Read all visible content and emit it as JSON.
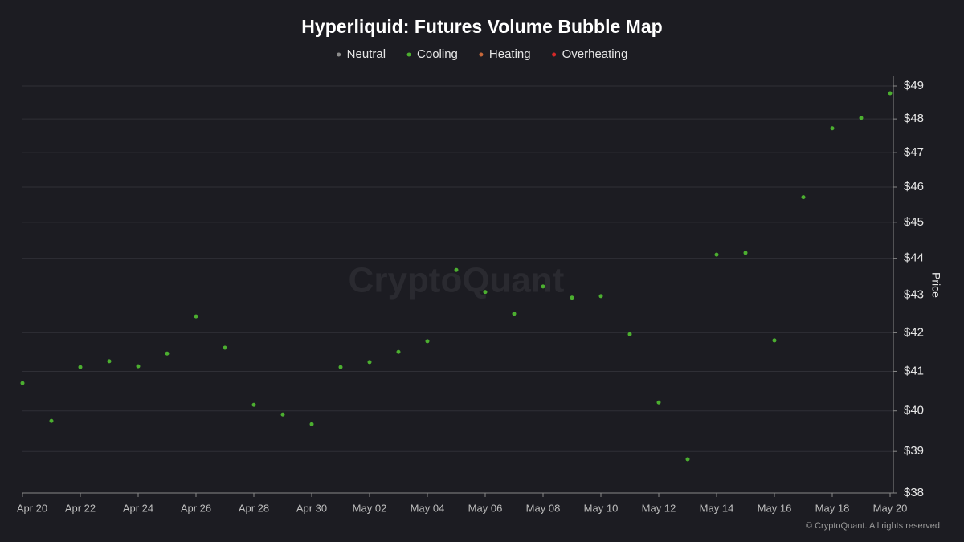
{
  "chart_data": {
    "type": "scatter",
    "title": "Hyperliquid: Futures Volume Bubble Map",
    "y_label": "Price",
    "watermark": "CryptoQuant",
    "copyright": "© CryptoQuant. All rights reserved",
    "yscale": "log",
    "grid": true,
    "legend": "top",
    "categories": [
      "Apr 20",
      null,
      "Apr 22",
      null,
      "Apr 24",
      null,
      "Apr 26",
      null,
      "Apr 28",
      null,
      "Apr 30",
      null,
      "May 02",
      null,
      "May 04",
      null,
      "May 06",
      null,
      "May 08",
      null,
      "May 10",
      null,
      "May 12",
      null,
      "May 14",
      null,
      "May 16",
      null,
      "May 18",
      null,
      "May 20"
    ],
    "series": [
      {
        "name": "Neutral",
        "color": "#8c8c8c",
        "values": [
          null,
          null,
          null,
          null,
          null,
          null,
          null,
          null,
          null,
          null,
          null,
          null,
          null,
          null,
          null,
          null,
          null,
          null,
          null,
          null,
          null,
          null,
          null,
          null,
          null,
          null,
          null,
          null,
          null,
          null,
          null
        ]
      },
      {
        "name": "Cooling",
        "color": "#4caf30",
        "values": [
          40.7,
          39.75,
          41.11,
          41.26,
          41.13,
          41.46,
          42.43,
          41.61,
          40.15,
          39.91,
          39.67,
          41.11,
          41.24,
          41.5,
          41.78,
          43.68,
          43.08,
          42.5,
          43.23,
          42.93,
          42.97,
          41.96,
          40.21,
          38.81,
          44.1,
          44.15,
          41.8,
          45.71,
          47.72,
          48.03,
          48.78
        ]
      },
      {
        "name": "Heating",
        "color": "#c8683a",
        "values": [
          null,
          null,
          null,
          null,
          null,
          null,
          null,
          null,
          null,
          null,
          null,
          null,
          null,
          null,
          null,
          null,
          null,
          null,
          null,
          null,
          null,
          null,
          null,
          null,
          null,
          null,
          null,
          null,
          null,
          null,
          null
        ]
      },
      {
        "name": "Overheating",
        "color": "#d62828",
        "values": [
          null,
          null,
          null,
          null,
          null,
          null,
          null,
          null,
          null,
          null,
          null,
          null,
          null,
          null,
          null,
          null,
          null,
          null,
          null,
          null,
          null,
          null,
          null,
          null,
          null,
          null,
          null,
          null,
          null,
          null,
          null
        ]
      }
    ],
    "ylim": [
      38,
      49
    ],
    "yticks": [
      {
        "value": 38,
        "label": "$38"
      },
      {
        "value": 39,
        "label": "$39"
      },
      {
        "value": 40,
        "label": "$40"
      },
      {
        "value": 41,
        "label": "$41"
      },
      {
        "value": 42,
        "label": "$42"
      },
      {
        "value": 43,
        "label": "$43"
      },
      {
        "value": 44,
        "label": "$44"
      },
      {
        "value": 45,
        "label": "$45"
      },
      {
        "value": 46,
        "label": "$46"
      },
      {
        "value": 47,
        "label": "$47"
      },
      {
        "value": 48,
        "label": "$48"
      },
      {
        "value": 49,
        "label": "$49"
      }
    ]
  }
}
